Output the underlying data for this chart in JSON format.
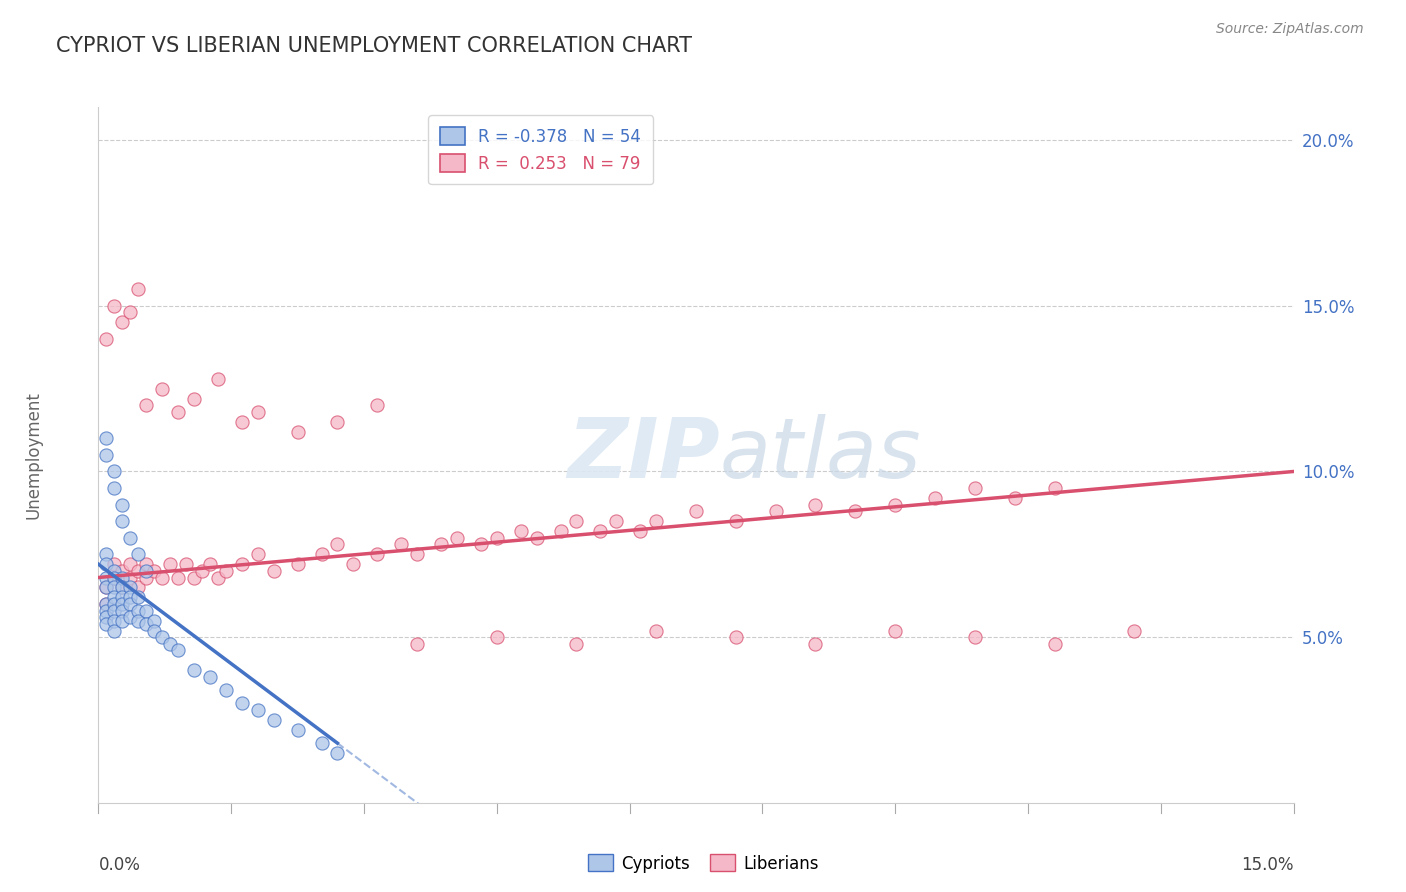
{
  "title": "CYPRIOT VS LIBERIAN UNEMPLOYMENT CORRELATION CHART",
  "source": "Source: ZipAtlas.com",
  "ylabel": "Unemployment",
  "xlim": [
    0,
    0.15
  ],
  "ylim": [
    0,
    0.21
  ],
  "yticks": [
    0.05,
    0.1,
    0.15,
    0.2
  ],
  "ytick_labels": [
    "5.0%",
    "10.0%",
    "15.0%",
    "20.0%"
  ],
  "cypriot_color": "#aec6e8",
  "liberian_color": "#f5b8c8",
  "cypriot_line_color": "#4472c4",
  "liberian_line_color": "#d94f6e",
  "cypriot_R": -0.378,
  "cypriot_N": 54,
  "liberian_R": 0.253,
  "liberian_N": 79,
  "watermark_zip": "ZIP",
  "watermark_atlas": "atlas",
  "background_color": "#ffffff",
  "cypriot_x": [
    0.001,
    0.001,
    0.001,
    0.001,
    0.001,
    0.001,
    0.001,
    0.001,
    0.002,
    0.002,
    0.002,
    0.002,
    0.002,
    0.002,
    0.002,
    0.002,
    0.003,
    0.003,
    0.003,
    0.003,
    0.003,
    0.003,
    0.004,
    0.004,
    0.004,
    0.004,
    0.005,
    0.005,
    0.005,
    0.006,
    0.006,
    0.007,
    0.007,
    0.008,
    0.009,
    0.01,
    0.012,
    0.014,
    0.016,
    0.018,
    0.02,
    0.022,
    0.025,
    0.028,
    0.03,
    0.001,
    0.001,
    0.002,
    0.002,
    0.003,
    0.003,
    0.004,
    0.005,
    0.006
  ],
  "cypriot_y": [
    0.075,
    0.072,
    0.068,
    0.065,
    0.06,
    0.058,
    0.056,
    0.054,
    0.07,
    0.068,
    0.065,
    0.062,
    0.06,
    0.058,
    0.055,
    0.052,
    0.068,
    0.065,
    0.062,
    0.06,
    0.058,
    0.055,
    0.065,
    0.062,
    0.06,
    0.056,
    0.062,
    0.058,
    0.055,
    0.058,
    0.054,
    0.055,
    0.052,
    0.05,
    0.048,
    0.046,
    0.04,
    0.038,
    0.034,
    0.03,
    0.028,
    0.025,
    0.022,
    0.018,
    0.015,
    0.11,
    0.105,
    0.1,
    0.095,
    0.09,
    0.085,
    0.08,
    0.075,
    0.07
  ],
  "liberian_x": [
    0.001,
    0.001,
    0.002,
    0.002,
    0.003,
    0.003,
    0.004,
    0.004,
    0.005,
    0.005,
    0.006,
    0.006,
    0.007,
    0.008,
    0.009,
    0.01,
    0.011,
    0.012,
    0.013,
    0.014,
    0.015,
    0.016,
    0.018,
    0.02,
    0.022,
    0.025,
    0.028,
    0.03,
    0.032,
    0.035,
    0.038,
    0.04,
    0.043,
    0.045,
    0.048,
    0.05,
    0.053,
    0.055,
    0.058,
    0.06,
    0.063,
    0.065,
    0.068,
    0.07,
    0.075,
    0.08,
    0.085,
    0.09,
    0.095,
    0.1,
    0.105,
    0.11,
    0.115,
    0.12,
    0.001,
    0.002,
    0.003,
    0.004,
    0.005,
    0.006,
    0.008,
    0.01,
    0.012,
    0.015,
    0.018,
    0.02,
    0.025,
    0.03,
    0.035,
    0.04,
    0.05,
    0.06,
    0.07,
    0.08,
    0.09,
    0.1,
    0.11,
    0.12,
    0.13
  ],
  "liberian_y": [
    0.06,
    0.065,
    0.068,
    0.072,
    0.065,
    0.07,
    0.068,
    0.072,
    0.065,
    0.07,
    0.068,
    0.072,
    0.07,
    0.068,
    0.072,
    0.068,
    0.072,
    0.068,
    0.07,
    0.072,
    0.068,
    0.07,
    0.072,
    0.075,
    0.07,
    0.072,
    0.075,
    0.078,
    0.072,
    0.075,
    0.078,
    0.075,
    0.078,
    0.08,
    0.078,
    0.08,
    0.082,
    0.08,
    0.082,
    0.085,
    0.082,
    0.085,
    0.082,
    0.085,
    0.088,
    0.085,
    0.088,
    0.09,
    0.088,
    0.09,
    0.092,
    0.095,
    0.092,
    0.095,
    0.14,
    0.15,
    0.145,
    0.148,
    0.155,
    0.12,
    0.125,
    0.118,
    0.122,
    0.128,
    0.115,
    0.118,
    0.112,
    0.115,
    0.12,
    0.048,
    0.05,
    0.048,
    0.052,
    0.05,
    0.048,
    0.052,
    0.05,
    0.048,
    0.052
  ]
}
